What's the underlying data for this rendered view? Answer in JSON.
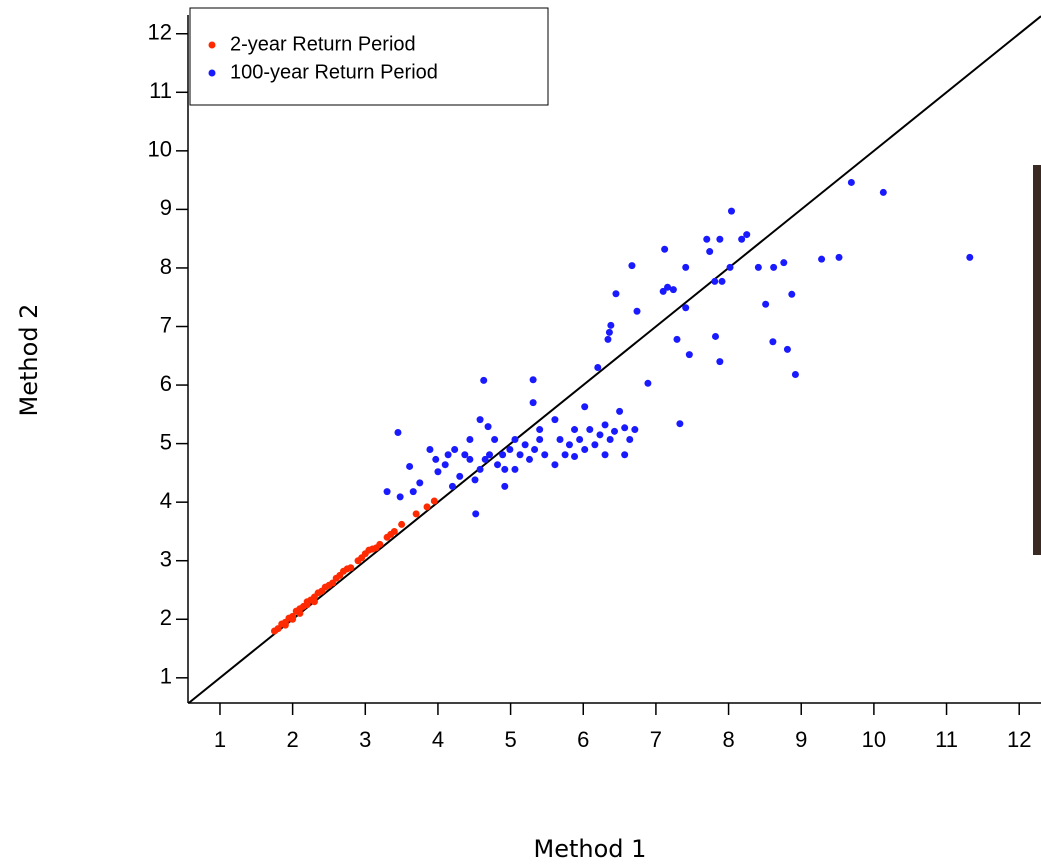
{
  "chart_data": {
    "type": "scatter",
    "x_label": "Method 1",
    "y_label": "Method 2",
    "xlim": [
      0.56,
      12.3
    ],
    "ylim": [
      0.57,
      12.32
    ],
    "xticks": [
      1,
      2,
      3,
      4,
      5,
      6,
      7,
      8,
      9,
      10,
      11,
      12
    ],
    "yticks": [
      1,
      2,
      3,
      4,
      5,
      6,
      7,
      8,
      9,
      10,
      11,
      12
    ],
    "diagonal": true,
    "legend": "top-left",
    "series": [
      {
        "name": "2-year Return Period",
        "color": "#ff2a00",
        "x": [
          1.75,
          1.8,
          1.85,
          1.9,
          1.95,
          2.0,
          2.05,
          2.1,
          2.15,
          2.2,
          2.25,
          2.3,
          2.35,
          2.4,
          2.45,
          2.5,
          2.55,
          2.6,
          2.65,
          2.7,
          2.75,
          2.8,
          2.9,
          2.95,
          3.0,
          3.05,
          3.1,
          3.15,
          3.2,
          3.3,
          3.35,
          3.4,
          3.5,
          3.7,
          3.85,
          3.95,
          1.9,
          2.0,
          2.1,
          2.2,
          2.3
        ],
        "y": [
          1.8,
          1.84,
          1.92,
          1.95,
          2.02,
          2.05,
          2.14,
          2.18,
          2.22,
          2.3,
          2.33,
          2.38,
          2.45,
          2.48,
          2.55,
          2.58,
          2.62,
          2.7,
          2.75,
          2.82,
          2.86,
          2.88,
          3.0,
          3.05,
          3.12,
          3.18,
          3.2,
          3.22,
          3.28,
          3.4,
          3.45,
          3.5,
          3.62,
          3.8,
          3.92,
          4.02,
          1.9,
          2.0,
          2.1,
          2.25,
          2.3
        ]
      },
      {
        "name": "100-year Return Period",
        "color": "#1a1aff",
        "x": [
          9.69,
          10.13,
          11.32,
          8.04,
          8.25,
          8.18,
          7.88,
          7.7,
          7.12,
          6.67,
          7.41,
          7.74,
          8.02,
          8.41,
          8.62,
          8.76,
          9.28,
          9.52,
          7.16,
          7.24,
          7.1,
          6.45,
          7.81,
          7.91,
          8.87,
          8.51,
          6.74,
          7.41,
          6.38,
          6.36,
          6.34,
          7.29,
          7.82,
          8.61,
          7.46,
          8.81,
          7.88,
          8.92,
          6.2,
          6.89,
          4.63,
          5.31,
          5.31,
          7.33,
          3.45,
          4.58,
          3.61,
          3.75,
          3.3,
          3.48,
          3.66,
          3.89,
          3.97,
          4.1,
          4.0,
          4.14,
          4.23,
          4.37,
          4.44,
          4.3,
          4.51,
          4.58,
          4.65,
          4.71,
          4.69,
          4.78,
          4.82,
          4.89,
          4.92,
          4.52,
          4.92,
          4.99,
          5.06,
          5.13,
          5.2,
          5.26,
          5.33,
          5.4,
          5.47,
          5.4,
          5.61,
          5.68,
          5.75,
          5.81,
          5.88,
          5.95,
          6.02,
          6.02,
          6.09,
          6.16,
          6.23,
          6.3,
          6.37,
          6.43,
          6.5,
          6.57,
          6.64,
          6.71,
          5.61,
          5.06,
          5.88,
          6.3,
          6.57,
          4.2,
          4.44
        ],
        "y": [
          9.46,
          9.29,
          8.18,
          8.97,
          8.57,
          8.49,
          8.49,
          8.49,
          8.32,
          8.04,
          8.01,
          8.28,
          8.01,
          8.01,
          8.01,
          8.09,
          8.15,
          8.18,
          7.67,
          7.63,
          7.6,
          7.56,
          7.77,
          7.77,
          7.55,
          7.38,
          7.26,
          7.32,
          7.02,
          6.9,
          6.78,
          6.78,
          6.83,
          6.74,
          6.52,
          6.61,
          6.4,
          6.18,
          6.3,
          6.03,
          6.08,
          6.09,
          5.7,
          5.34,
          5.19,
          5.41,
          4.61,
          4.33,
          4.18,
          4.09,
          4.18,
          4.9,
          4.73,
          4.64,
          4.52,
          4.81,
          4.9,
          4.81,
          4.73,
          4.44,
          4.38,
          4.56,
          4.73,
          4.81,
          5.29,
          5.07,
          4.64,
          4.81,
          4.56,
          3.8,
          4.27,
          4.9,
          5.07,
          4.81,
          4.98,
          4.73,
          4.9,
          5.07,
          4.81,
          5.24,
          5.41,
          5.07,
          4.81,
          4.98,
          5.24,
          5.07,
          4.9,
          5.63,
          5.24,
          4.98,
          5.15,
          5.32,
          5.07,
          5.21,
          5.55,
          5.27,
          5.07,
          5.24,
          4.64,
          4.56,
          4.78,
          4.81,
          4.81,
          4.27,
          5.07
        ]
      }
    ]
  }
}
